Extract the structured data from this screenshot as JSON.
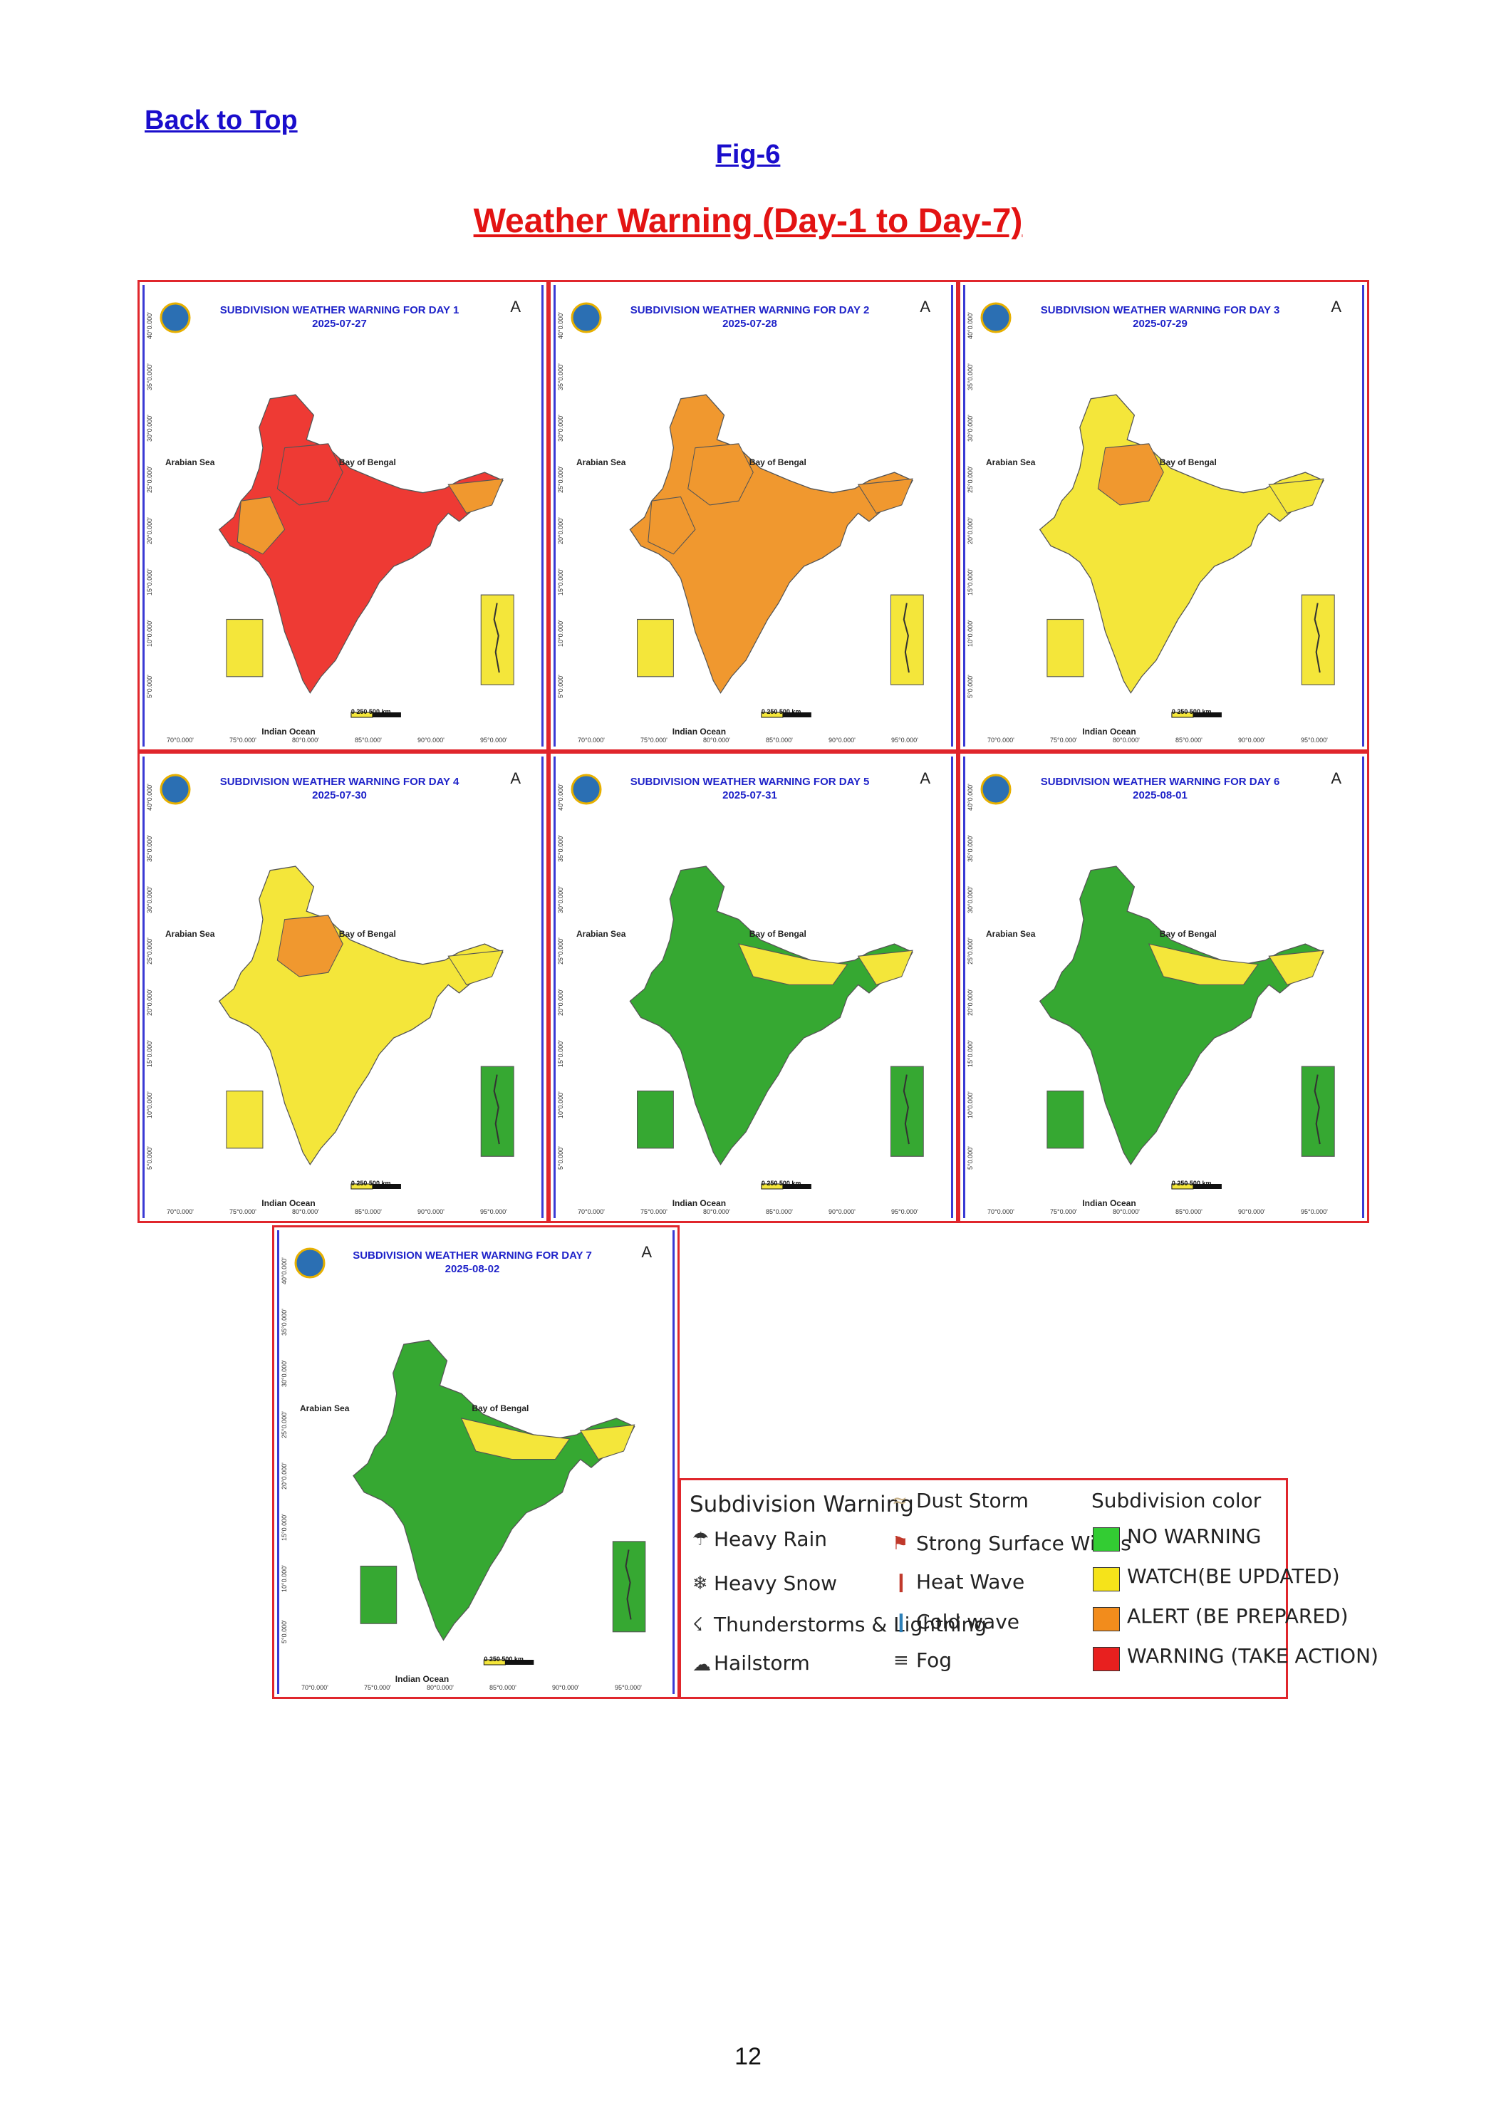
{
  "header": {
    "back_link": "Back to Top",
    "fig_label": "Fig-6",
    "title": "Weather Warning (Day-1 to Day-7)"
  },
  "map_common": {
    "lat_labels": [
      "40°0.000'",
      "35°0.000'",
      "30°0.000'",
      "25°0.000'",
      "20°0.000'",
      "15°0.000'",
      "10°0.000'",
      "5°0.000'"
    ],
    "lon_labels": [
      "70°0.000'",
      "75°0.000'",
      "80°0.000'",
      "85°0.000'",
      "90°0.000'",
      "95°0.000'"
    ],
    "arabian_sea": "Arabian Sea",
    "bay_of_bengal": "Bay of Bengal",
    "indian_ocean": "Indian Ocean",
    "scale": "0    250    500 km",
    "north_arrow": "A"
  },
  "panels": [
    {
      "title": "SUBDIVISION WEATHER WARNING FOR DAY 1",
      "date": "2025-07-27",
      "dominant": "red"
    },
    {
      "title": "SUBDIVISION WEATHER WARNING FOR DAY 2",
      "date": "2025-07-28",
      "dominant": "orange"
    },
    {
      "title": "SUBDIVISION WEATHER WARNING FOR DAY 3",
      "date": "2025-07-29",
      "dominant": "yellow"
    },
    {
      "title": "SUBDIVISION WEATHER WARNING FOR DAY 4",
      "date": "2025-07-30",
      "dominant": "yellow"
    },
    {
      "title": "SUBDIVISION WEATHER WARNING FOR DAY 5",
      "date": "2025-07-31",
      "dominant": "green"
    },
    {
      "title": "SUBDIVISION WEATHER WARNING FOR DAY 6",
      "date": "2025-08-01",
      "dominant": "green"
    },
    {
      "title": "SUBDIVISION WEATHER WARNING FOR DAY 7",
      "date": "2025-08-02",
      "dominant": "green"
    }
  ],
  "legend": {
    "warning_heading": "Subdivision Warning",
    "warnings": [
      {
        "label": "Heavy Rain",
        "icon": "rain-cloud-icon"
      },
      {
        "label": "Heavy Snow",
        "icon": "snow-cloud-icon"
      },
      {
        "label": "Thunderstorms & Lightning",
        "icon": "thunderstorm-icon"
      },
      {
        "label": "Hailstorm",
        "icon": "hailstorm-icon"
      },
      {
        "label": "Dust Storm",
        "icon": "dust-storm-icon"
      },
      {
        "label": "Strong Surface Winds",
        "icon": "wind-icon"
      },
      {
        "label": "Heat Wave",
        "icon": "thermometer-hot-icon"
      },
      {
        "label": "Cold wave",
        "icon": "thermometer-cold-icon"
      },
      {
        "label": "Fog",
        "icon": "fog-icon"
      }
    ],
    "color_heading": "Subdivision color",
    "colors": [
      {
        "label": "NO WARNING",
        "color": "#33cc33"
      },
      {
        "label": "WATCH(BE UPDATED)",
        "color": "#f5e31a"
      },
      {
        "label": "ALERT (BE PREPARED)",
        "color": "#f28c1c"
      },
      {
        "label": "WARNING (TAKE ACTION)",
        "color": "#e8201f"
      }
    ]
  },
  "page_number": "12"
}
